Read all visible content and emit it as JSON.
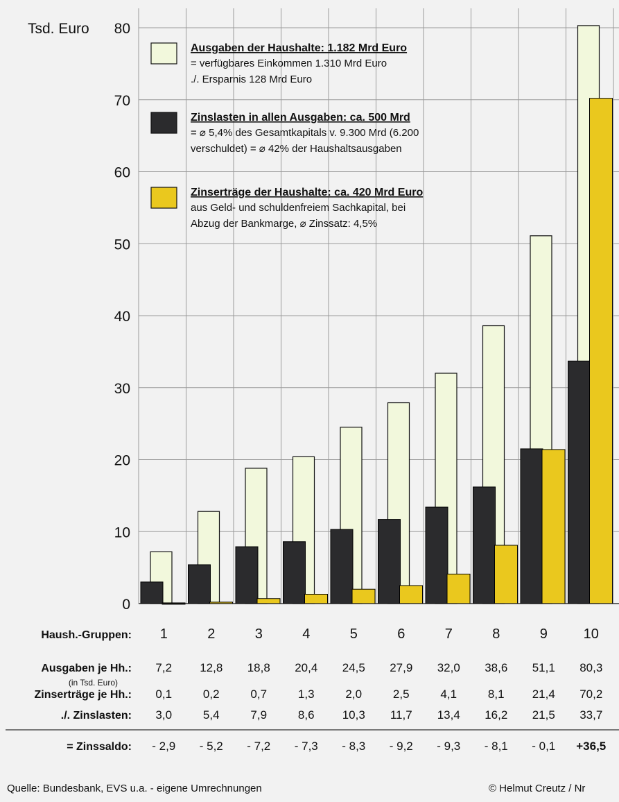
{
  "chart_data": {
    "type": "bar",
    "unit_label": "Tsd. Euro",
    "ylim": [
      0,
      80
    ],
    "yticks": [
      0,
      10,
      20,
      30,
      40,
      50,
      60,
      70,
      80
    ],
    "categories": [
      "1",
      "2",
      "3",
      "4",
      "5",
      "6",
      "7",
      "8",
      "9",
      "10"
    ],
    "series": [
      {
        "name": "Ausgaben der Haushalte: 1.182 Mrd Euro",
        "color": "#f2f8dc",
        "values": [
          7.2,
          12.8,
          18.8,
          20.4,
          24.5,
          27.9,
          32.0,
          38.6,
          51.1,
          80.3
        ]
      },
      {
        "name": "Zinslasten in allen Ausgaben: ca. 500 Mrd",
        "color": "#2b2b2d",
        "values": [
          3.0,
          5.4,
          7.9,
          8.6,
          10.3,
          11.7,
          13.4,
          16.2,
          21.5,
          33.7
        ]
      },
      {
        "name": "Zinserträge der Haushalte: ca. 420 Mrd Euro",
        "color": "#eac81e",
        "values": [
          0.1,
          0.2,
          0.7,
          1.3,
          2.0,
          2.5,
          4.1,
          8.1,
          21.4,
          70.2
        ]
      }
    ],
    "legend": {
      "placement": "top-left",
      "entries": [
        {
          "title": "Ausgaben der Haushalte: 1.182 Mrd Euro",
          "lines": [
            "= verfügbares Einkommen 1.310 Mrd Euro",
            "./. Ersparnis 128 Mrd Euro"
          ]
        },
        {
          "title": "Zinslasten in allen Ausgaben: ca. 500 Mrd",
          "lines": [
            "= ⌀ 5,4% des Gesamtkapitals v. 9.300 Mrd (6.200",
            "verschuldet) = ⌀ 42% der Haushaltsausgaben"
          ]
        },
        {
          "title": "Zinserträge der Haushalte: ca. 420 Mrd Euro",
          "lines": [
            "aus Geld- und schuldenfreiem Sachkapital, bei",
            "Abzug der Bankmarge, ⌀ Zinssatz: 4,5%"
          ]
        }
      ]
    },
    "grid": true,
    "table": {
      "rows": [
        {
          "label": "Haush.-Gruppen:",
          "sublabel": "",
          "values": [
            "1",
            "2",
            "3",
            "4",
            "5",
            "6",
            "7",
            "8",
            "9",
            "10"
          ]
        },
        {
          "label": "Ausgaben je Hh.:",
          "sublabel": "(in Tsd. Euro)",
          "values": [
            "7,2",
            "12,8",
            "18,8",
            "20,4",
            "24,5",
            "27,9",
            "32,0",
            "38,6",
            "51,1",
            "80,3"
          ]
        },
        {
          "label": "Zinserträge je Hh.:",
          "sublabel": "",
          "values": [
            "0,1",
            "0,2",
            "0,7",
            "1,3",
            "2,0",
            "2,5",
            "4,1",
            "8,1",
            "21,4",
            "70,2"
          ]
        },
        {
          "label": "./. Zinslasten:",
          "sublabel": "",
          "values": [
            "3,0",
            "5,4",
            "7,9",
            "8,6",
            "10,3",
            "11,7",
            "13,4",
            "16,2",
            "21,5",
            "33,7"
          ]
        },
        {
          "label": "= Zinssaldo:",
          "sublabel": "",
          "values": [
            "- 2,9",
            "- 5,2",
            "- 7,2",
            "- 7,3",
            "- 8,3",
            "- 9,2",
            "- 9,3",
            "- 8,1",
            "- 0,1",
            "+36,5"
          ]
        }
      ]
    }
  },
  "footer": {
    "source": "Quelle: Bundesbank, EVS u.a. - eigene Umrechnungen",
    "credit": "© Helmut Creutz / Nr"
  }
}
